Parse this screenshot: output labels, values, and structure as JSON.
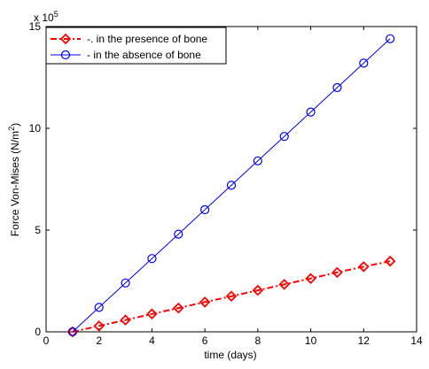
{
  "chart_data": {
    "type": "line",
    "title": "",
    "xlabel": "time (days)",
    "ylabel": "Force Von-Mises (N/m^2)",
    "ylabel_parts": {
      "main": "Force Von-Mises (N/m",
      "superscript": "2",
      "tail": ")"
    },
    "y_multiplier": {
      "base": "x 10",
      "exponent": "5"
    },
    "xlim": [
      0,
      14
    ],
    "ylim": [
      0,
      15
    ],
    "xticks": [
      0,
      2,
      4,
      6,
      8,
      10,
      12,
      14
    ],
    "yticks": [
      0,
      5,
      10,
      15
    ],
    "grid": false,
    "legend_position": "top-left",
    "series": [
      {
        "name": "-. in the presence of bone",
        "color": "#ff0000",
        "line_style": "dash-dot",
        "marker": "diamond",
        "x": [
          1,
          2,
          3,
          4,
          5,
          6,
          7,
          8,
          9,
          10,
          11,
          12,
          13
        ],
        "y": [
          0.0,
          0.29,
          0.58,
          0.88,
          1.17,
          1.46,
          1.75,
          2.04,
          2.33,
          2.62,
          2.92,
          3.2,
          3.47
        ]
      },
      {
        "name": "- in the absence of bone",
        "color": "#0000ff",
        "line_style": "solid",
        "marker": "circle",
        "x": [
          1,
          2,
          3,
          4,
          5,
          6,
          7,
          8,
          9,
          10,
          11,
          12,
          13
        ],
        "y": [
          0.0,
          1.2,
          2.4,
          3.6,
          4.8,
          6.0,
          7.2,
          8.4,
          9.6,
          10.8,
          12.0,
          13.2,
          14.4
        ]
      }
    ]
  }
}
